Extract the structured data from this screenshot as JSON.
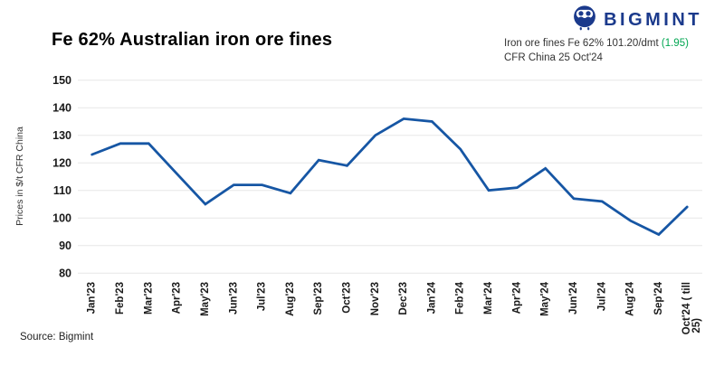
{
  "header": {
    "title": "Fe 62% Australian iron ore fines",
    "brand": "BIGMINT"
  },
  "annotation": {
    "line1": "Iron ore fines Fe 62% 101.20/dmt ",
    "change": "(1.95)",
    "line2": "CFR China 25 Oct'24"
  },
  "footer": {
    "source": "Source: Bigmint"
  },
  "colors": {
    "line": "#1656a4",
    "brand_navy": "#1b3a8c",
    "change_green": "#00a651",
    "grid": "#e7e7e7",
    "axis_text": "#1a1a1a"
  },
  "chart_data": {
    "type": "line",
    "title": "Fe 62% Australian iron ore fines",
    "xlabel": "",
    "ylabel": "Prices in $/t CFR China",
    "ylim": [
      80,
      150
    ],
    "ytick_step": 10,
    "grid": true,
    "legend_position": "none",
    "categories": [
      "Jan'23",
      "Feb'23",
      "Mar'23",
      "Apr'23",
      "May'23",
      "Jun'23",
      "Jul'23",
      "Aug'23",
      "Sep'23",
      "Oct'23",
      "Nov'23",
      "Dec'23",
      "Jan'24",
      "Feb'24",
      "Mar'24",
      "Apr'24",
      "May'24",
      "Jun'24",
      "Jul'24",
      "Aug'24",
      "Sep'24",
      "Oct'24 ( till 25)"
    ],
    "values": [
      123,
      127,
      127,
      116,
      105,
      112,
      112,
      109,
      121,
      119,
      130,
      136,
      135,
      125,
      110,
      111,
      118,
      107,
      106,
      99,
      94,
      104
    ]
  }
}
